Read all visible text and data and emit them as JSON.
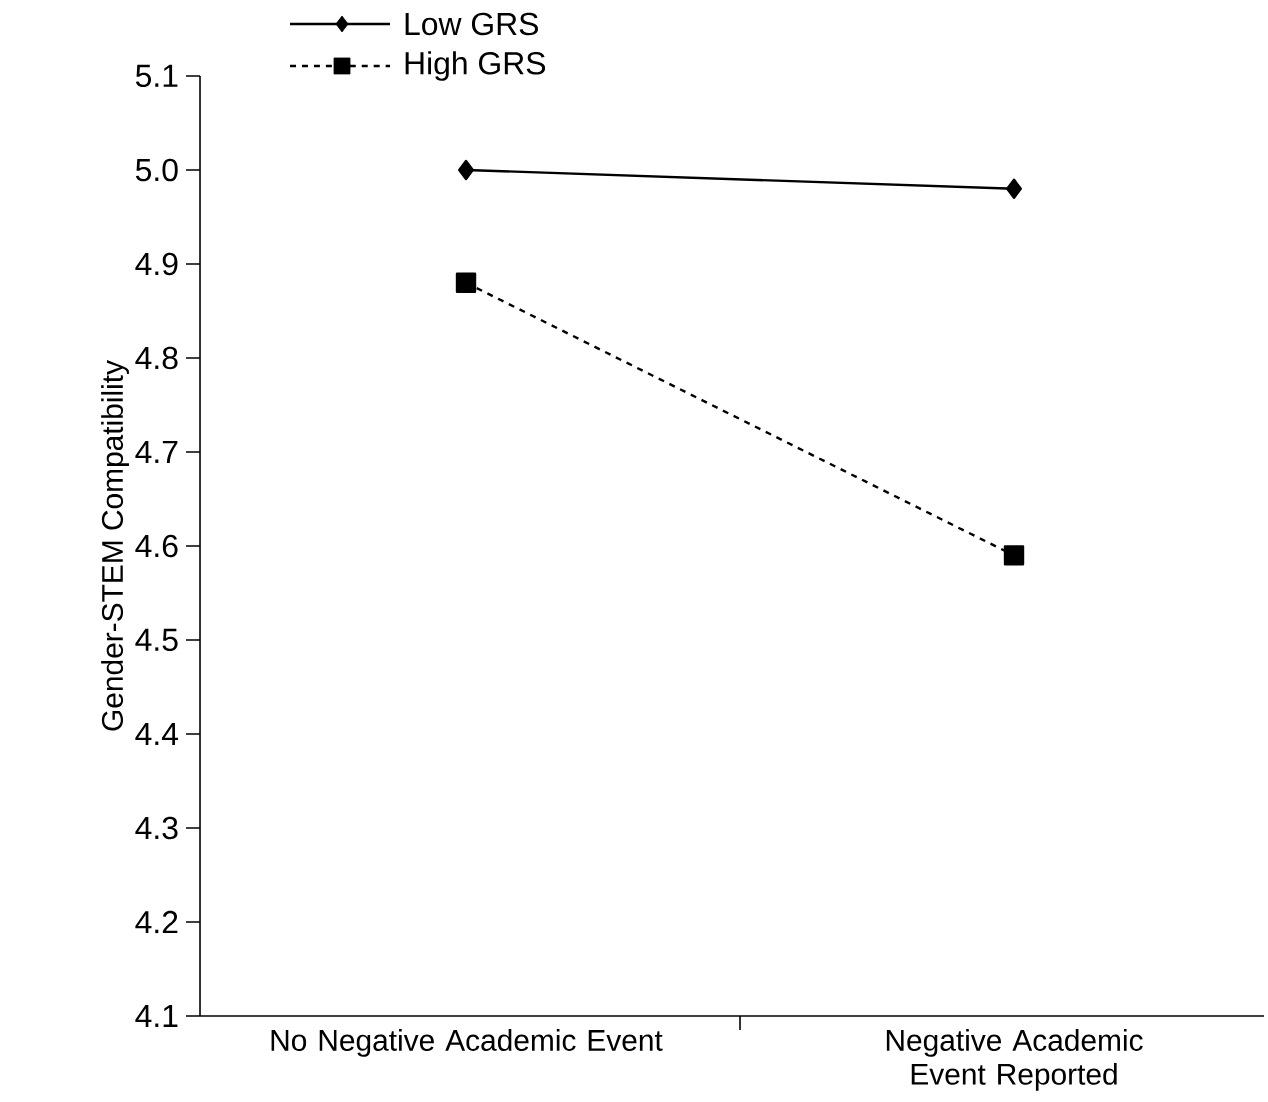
{
  "chart_data": {
    "type": "line",
    "ylabel": "Gender-STEM Compatibility",
    "categories": [
      "No Negative Academic Event",
      "Negative Academic Event Reported"
    ],
    "series": [
      {
        "name": "Low GRS",
        "color": "#000000",
        "values": [
          5.0,
          4.98
        ],
        "marker": "diamond",
        "line_style": "solid"
      },
      {
        "name": "High GRS",
        "color": "#000000",
        "values": [
          4.88,
          4.59
        ],
        "marker": "square",
        "line_style": "dashed"
      }
    ],
    "ylim": [
      4.1,
      5.1
    ],
    "yticks": [
      4.1,
      4.2,
      4.3,
      4.4,
      4.5,
      4.6,
      4.7,
      4.8,
      4.9,
      {
        "value": 5.0,
        "label": "5.0"
      },
      5.1
    ],
    "legend": "top left"
  }
}
